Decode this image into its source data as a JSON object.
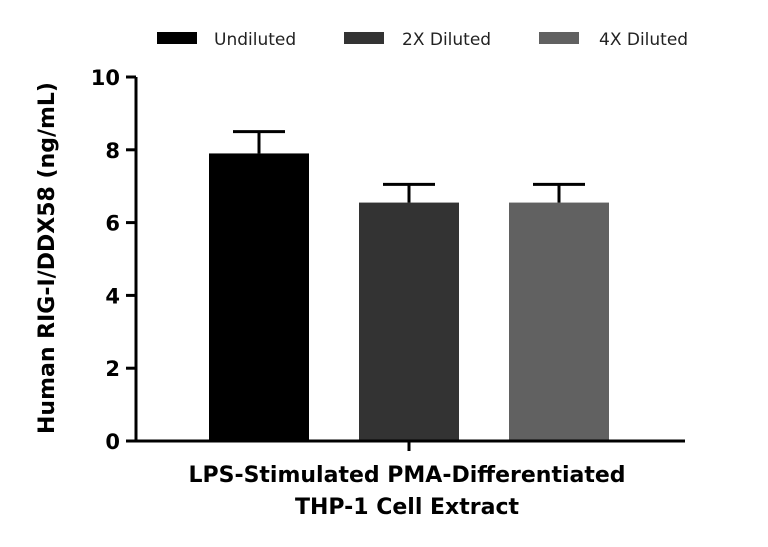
{
  "chart_data": {
    "type": "bar",
    "ylabel": "Human RIG-I/DDX58 (ng/mL)",
    "categories": [
      "LPS-Stimulated PMA-Differentiated",
      "THP-1 Cell Extract"
    ],
    "ylim": [
      0,
      10
    ],
    "yticks": [
      "0",
      "2",
      "4",
      "6",
      "8",
      "10"
    ],
    "legend_position": "top",
    "grid": false,
    "series": [
      {
        "name": "Undiluted",
        "value": 7.9,
        "error": 0.6,
        "color": "#000000"
      },
      {
        "name": "2X Diluted",
        "value": 6.55,
        "error": 0.5,
        "color": "#333333"
      },
      {
        "name": "4X Diluted",
        "value": 6.55,
        "error": 0.5,
        "color": "#616161"
      }
    ]
  }
}
